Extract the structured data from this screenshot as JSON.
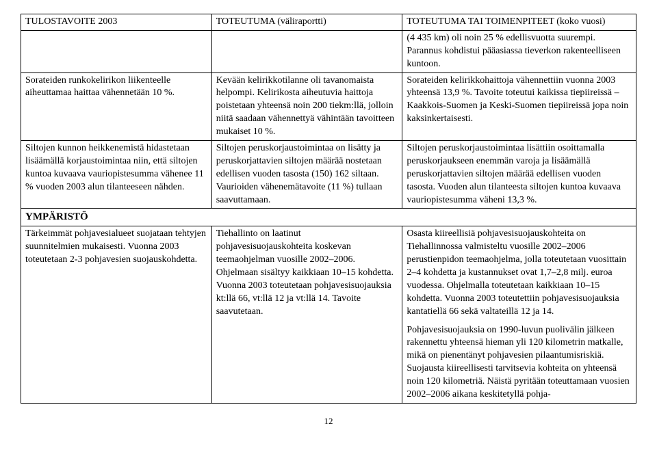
{
  "table": {
    "headers": {
      "col1": "TULOSTAVOITE 2003",
      "col2": "TOTEUTUMA (väliraportti)",
      "col3": "TOTEUTUMA TAI TOIMENPITEET (koko vuosi)"
    },
    "row1": {
      "c1": "",
      "c2": "",
      "c3": "(4 435 km) oli noin 25 % edellisvuotta suurempi. Parannus kohdistui pääasiassa tieverkon rakenteelliseen kuntoon."
    },
    "row2": {
      "c1": "Sorateiden runkokelirikon liikenteelle aiheuttamaa haittaa vähennetään 10 %.",
      "c2": "Kevään kelirikkotilanne oli tavanomaista helpompi. Kelirikosta aiheutuvia haittoja poistetaan yhteensä noin 200 tiekm:llä, jolloin niitä saadaan vähennettyä vähintään tavoitteen mukaiset 10 %.",
      "c3": "Sorateiden kelirikkohaittoja vähennettiin vuonna 2003 yhteensä 13,9 %. Tavoite toteutui kaikissa tiepiireissä – Kaakkois-Suomen ja Keski-Suomen tiepiireissä jopa noin kaksinkertaisesti."
    },
    "row3": {
      "c1": "Siltojen kunnon heikkenemistä hidastetaan lisäämällä korjaustoimintaa niin, että siltojen kuntoa kuvaava vauriopistesumma vähenee 11 % vuoden 2003 alun tilanteeseen nähden.",
      "c2": "Siltojen peruskorjaustoimintaa on lisätty ja peruskorjattavien siltojen määrää nostetaan edellisen vuoden tasosta (150) 162 siltaan. Vaurioiden vähenemätavoite (11 %) tullaan saavuttamaan.",
      "c3": "Siltojen peruskorjaustoimintaa lisättiin osoittamalla peruskorjaukseen enemmän varoja ja lisäämällä peruskorjattavien siltojen määrää edellisen vuoden tasosta. Vuoden alun tilanteesta siltojen kuntoa kuvaava vauriopistesumma väheni 13,3 %."
    },
    "section": "YMPÄRISTÖ",
    "row4": {
      "c1": "Tärkeimmät pohjavesialueet suojataan tehtyjen suunnitelmien mukaisesti. Vuonna 2003 toteutetaan 2-3 pohjavesien suojauskohdetta.",
      "c2": "Tiehallinto on laatinut pohjavesisuojauskohteita koskevan teemaohjelman vuosille 2002–2006. Ohjelmaan sisältyy kaikkiaan 10–15 kohdetta. Vuonna 2003 toteutetaan pohjavesisuojauksia kt:llä 66, vt:llä 12 ja vt:llä 14. Tavoite saavutetaan.",
      "c3p1": "Osasta kiireellisiä pohjavesisuojauskohteita on Tiehallinnossa valmisteltu vuosille 2002–2006 perustienpidon teemaohjelma, jolla toteutetaan vuosittain 2–4 kohdetta ja kustannukset ovat 1,7–2,8 milj. euroa vuodessa. Ohjelmalla toteutetaan kaikkiaan 10–15 kohdetta. Vuonna 2003 toteutettiin pohjavesisuojauksia kantatiellä 66 sekä valtateillä 12 ja 14.",
      "c3p2": "Pohjavesisuojauksia on 1990-luvun puolivälin jälkeen rakennettu yhteensä hieman yli 120 kilometrin matkalle, mikä on pienentänyt pohjavesien pilaantumisriskiä. Suojausta kiireellisesti tarvitsevia kohteita on yhteensä noin 120 kilometriä. Näistä pyritään toteuttamaan vuosien 2002–2006 aikana keskitetyllä pohja-"
    }
  },
  "pageNumber": "12"
}
